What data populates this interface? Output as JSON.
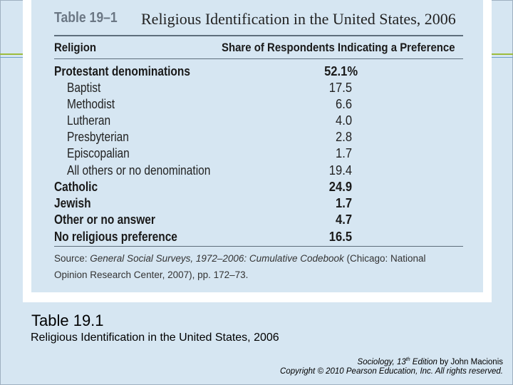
{
  "table": {
    "number": "Table 19–1",
    "title": "Religious Identification in the United States, 2006",
    "col_religion": "Religion",
    "col_share": "Share of Respondents Indicating a Preference",
    "rows": [
      {
        "label": "Protestant denominations",
        "value": "52.1%"
      },
      {
        "label": "Baptist",
        "value": "17.5"
      },
      {
        "label": "Methodist",
        "value": "6.6"
      },
      {
        "label": "Lutheran",
        "value": "4.0"
      },
      {
        "label": "Presbyterian",
        "value": "2.8"
      },
      {
        "label": "Episcopalian",
        "value": "1.7"
      },
      {
        "label": "All others or no denomination",
        "value": "19.4"
      },
      {
        "label": "Catholic",
        "value": "24.9"
      },
      {
        "label": "Jewish",
        "value": "1.7"
      },
      {
        "label": "Other or no answer",
        "value": "4.7"
      },
      {
        "label": "No religious preference",
        "value": "16.5"
      }
    ],
    "source_prefix": "Source: ",
    "source_italic": "General Social Surveys, 1972–2006: Cumulative Codebook",
    "source_rest": " (Chicago: National",
    "source_line2": "Opinion Research Center, 2007), pp. 172–73."
  },
  "caption": {
    "number": "Table 19.1",
    "description": "Religious Identification in the United States, 2006"
  },
  "credit": {
    "book": "Sociology, 13",
    "sup": "th",
    "edition": " Edition",
    "by": " by John Macionis",
    "copyright": "Copyright © 2010 Pearson Education, Inc. All rights reserved."
  }
}
